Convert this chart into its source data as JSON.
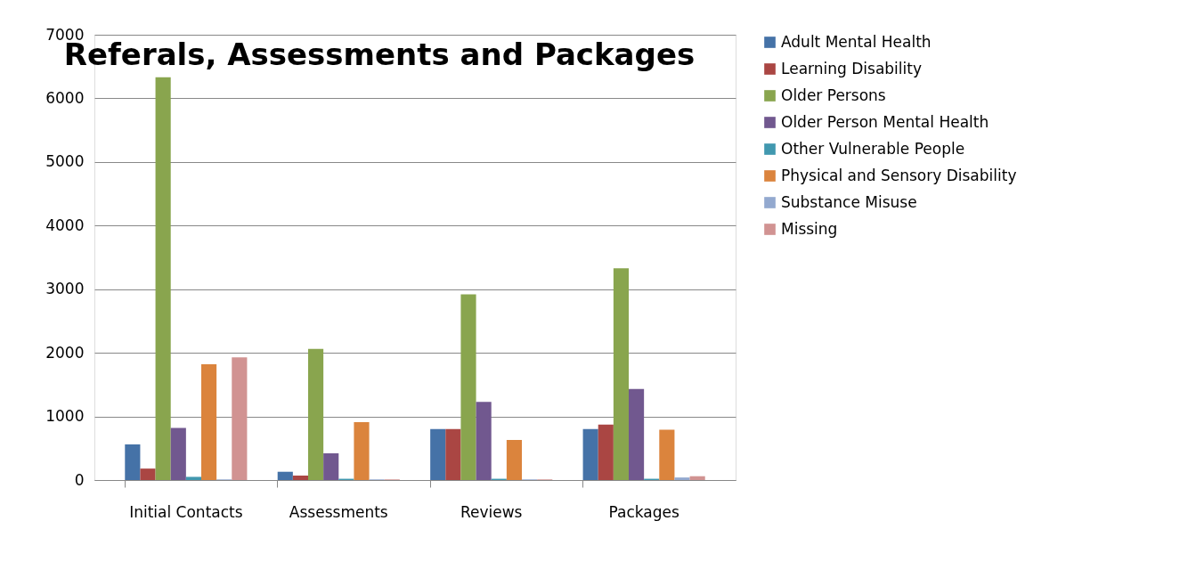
{
  "chart_data": {
    "type": "bar",
    "title": "Referals, Assessments and Packages",
    "categories": [
      "Initial Contacts",
      "Assessments",
      "Reviews",
      "Packages"
    ],
    "series": [
      {
        "name": "Adult Mental Health",
        "color": "#4572a7",
        "values": [
          560,
          130,
          800,
          800
        ]
      },
      {
        "name": "Learning Disability",
        "color": "#aa4643",
        "values": [
          180,
          70,
          800,
          870
        ]
      },
      {
        "name": "Older Persons",
        "color": "#89a54e",
        "values": [
          6330,
          2060,
          2920,
          3330
        ]
      },
      {
        "name": "Older Person Mental Health",
        "color": "#71588f",
        "values": [
          820,
          420,
          1230,
          1430
        ]
      },
      {
        "name": "Other Vulnerable People",
        "color": "#4198af",
        "values": [
          50,
          20,
          20,
          20
        ]
      },
      {
        "name": "Physical and Sensory Disability",
        "color": "#db843d",
        "values": [
          1820,
          910,
          630,
          790
        ]
      },
      {
        "name": "Substance Misuse",
        "color": "#93a9cf",
        "values": [
          10,
          10,
          10,
          40
        ]
      },
      {
        "name": "Missing",
        "color": "#d19392",
        "values": [
          1930,
          10,
          10,
          60
        ]
      }
    ],
    "ylim": [
      0,
      7000
    ],
    "yticks": [
      0,
      1000,
      2000,
      3000,
      4000,
      5000,
      6000,
      7000
    ],
    "grid": "y",
    "legend": "right"
  }
}
